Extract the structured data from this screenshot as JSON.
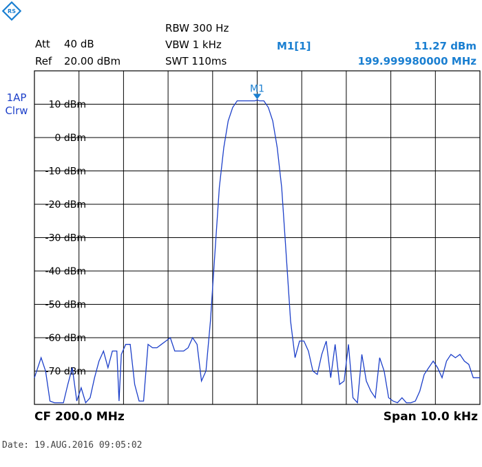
{
  "header": {
    "att_label": "Att",
    "att_value": "40 dB",
    "ref_label": "Ref",
    "ref_value": "20.00 dBm",
    "rbw": "RBW 300 Hz",
    "vbw": "VBW 1 kHz",
    "swt": "SWT 110ms",
    "marker_name": "M1[1]",
    "marker_level": "11.27 dBm",
    "marker_freq": "199.999980000 MHz"
  },
  "trace": {
    "line1": "1AP",
    "line2": "Clrw"
  },
  "footer": {
    "cf": "CF 200.0 MHz",
    "span": "Span 10.0 kHz",
    "date": "Date: 19.AUG.2016  09:05:02"
  },
  "colors": {
    "trace": "#1c3fc9",
    "marker": "#1a7fd1",
    "grid": "#000000"
  },
  "chart_data": {
    "type": "line",
    "xlim": [
      -5,
      5
    ],
    "ylim": [
      -80,
      20
    ],
    "x_unit": "kHz offset from CF",
    "yticks": [
      10,
      0,
      -10,
      -20,
      -30,
      -40,
      -50,
      -60,
      -70
    ],
    "ytick_labels": [
      "10 dBm",
      "0 dBm",
      "-10 dBm",
      "-20 dBm",
      "-30 dBm",
      "-40 dBm",
      "-50 dBm",
      "-60 dBm",
      "-70 dBm"
    ],
    "grid": true,
    "marker": {
      "label": "M1",
      "x": 0.0,
      "y": 11.27
    },
    "series": [
      {
        "x": [
          -5.0,
          -4.85,
          -4.75,
          -4.65,
          -4.55,
          -4.45,
          -4.35,
          -4.25,
          -4.15,
          -4.05,
          -3.95,
          -3.85,
          -3.75,
          -3.65,
          -3.55,
          -3.45,
          -3.35,
          -3.25,
          -3.15,
          -3.1,
          -3.05,
          -2.95,
          -2.85,
          -2.75,
          -2.65,
          -2.55,
          -2.45,
          -2.35,
          -2.25,
          -2.15,
          -2.05,
          -1.95,
          -1.85,
          -1.75,
          -1.65,
          -1.55,
          -1.45,
          -1.35,
          -1.25,
          -1.15,
          -1.05,
          -0.95,
          -0.85,
          -0.75,
          -0.65,
          -0.55,
          -0.45,
          -0.35,
          -0.25,
          -0.15,
          -0.05,
          0.0,
          0.05,
          0.15,
          0.25,
          0.35,
          0.45,
          0.55,
          0.65,
          0.75,
          0.85,
          0.95,
          1.05,
          1.15,
          1.25,
          1.35,
          1.45,
          1.55,
          1.65,
          1.75,
          1.85,
          1.95,
          2.05,
          2.15,
          2.25,
          2.35,
          2.45,
          2.55,
          2.65,
          2.75,
          2.85,
          2.95,
          3.05,
          3.15,
          3.25,
          3.35,
          3.45,
          3.55,
          3.65,
          3.75,
          3.85,
          3.95,
          4.05,
          4.15,
          4.25,
          4.35,
          4.45,
          4.55,
          4.65,
          4.75,
          4.85,
          5.0
        ],
        "y": [
          -72,
          -66,
          -70,
          -79,
          -80,
          -80,
          -80,
          -74,
          -69,
          -79,
          -75,
          -80,
          -78,
          -72,
          -67,
          -64,
          -69,
          -64,
          -64,
          -79,
          -65,
          -62,
          -62,
          -74,
          -79,
          -79,
          -62,
          -63,
          -63,
          -62,
          -61,
          -60,
          -64,
          -64,
          -64,
          -63,
          -60,
          -62,
          -73,
          -70,
          -55,
          -35,
          -15,
          -3,
          5,
          9,
          11,
          11,
          11,
          11,
          11,
          11.27,
          11,
          11,
          9,
          5,
          -3,
          -15,
          -35,
          -55,
          -66,
          -61,
          -61,
          -64,
          -70,
          -71,
          -65,
          -61,
          -72,
          -62,
          -74,
          -73,
          -62,
          -78,
          -80,
          -65,
          -73,
          -76,
          -78,
          -66,
          -70,
          -78,
          -79,
          -80,
          -78,
          -80,
          -80,
          -79,
          -76,
          -71,
          -69,
          -67,
          -69,
          -72,
          -67,
          -65,
          -66,
          -65,
          -67,
          -68,
          -72,
          -72
        ]
      }
    ]
  }
}
